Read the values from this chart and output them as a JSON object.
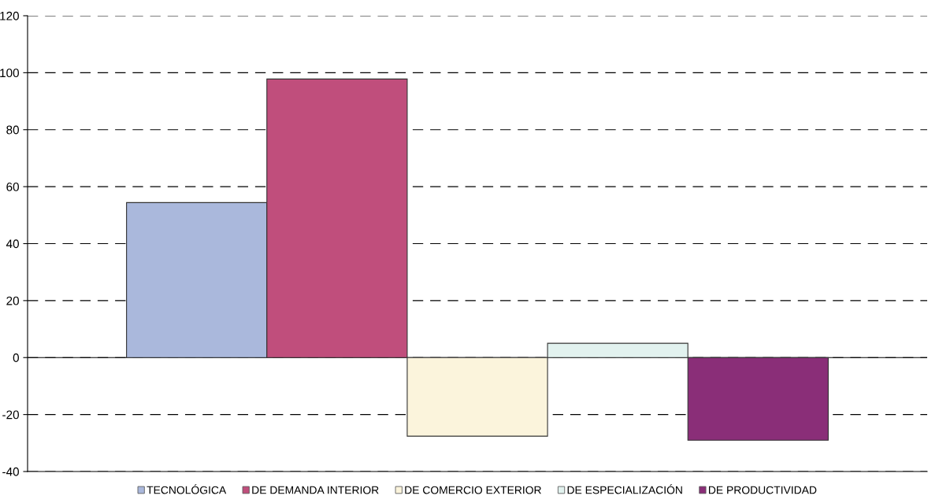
{
  "chart_data": {
    "type": "bar",
    "categories": [
      null
    ],
    "series": [
      {
        "name": "TECNOLÓGICA",
        "color": "#aab8dc",
        "values": [
          54.4
        ]
      },
      {
        "name": "DE DEMANDA INTERIOR",
        "color": "#c04e7c",
        "values": [
          97.8
        ]
      },
      {
        "name": "DE COMERCIO EXTERIOR",
        "color": "#fbf4dc",
        "values": [
          -27.6
        ]
      },
      {
        "name": "DE ESPECIALIZACIÓN",
        "color": "#e2f2ef",
        "values": [
          5.0
        ]
      },
      {
        "name": "DE PRODUCTIVIDAD",
        "color": "#8a2e78",
        "values": [
          -29.0
        ]
      }
    ],
    "ylim": [
      -40,
      120
    ],
    "yticks": [
      -40,
      -20,
      0,
      20,
      40,
      60,
      80,
      100,
      120
    ],
    "grid": "y",
    "legend": "bottom"
  }
}
